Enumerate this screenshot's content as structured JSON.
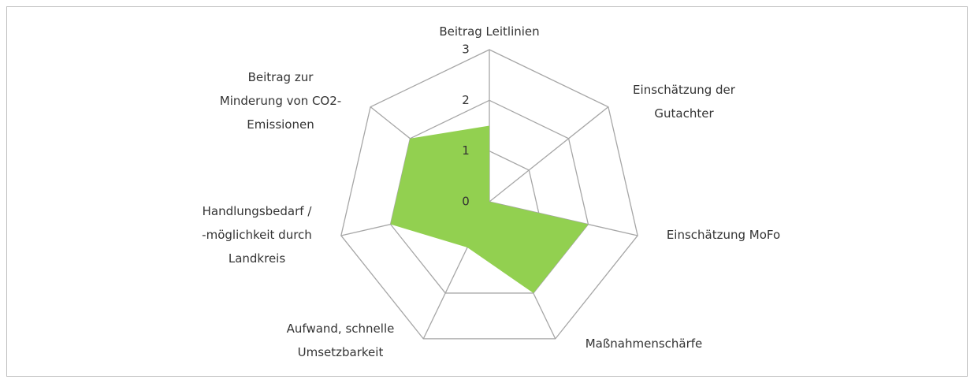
{
  "chart_data": {
    "type": "radar",
    "categories": [
      [
        "Beitrag Leitlinien"
      ],
      [
        "Einschätzung der",
        "Gutachter"
      ],
      [
        "Einschätzung MoFo"
      ],
      [
        "Maßnahmenschärfe"
      ],
      [
        "Aufwand, schnelle",
        "Umsetzbarkeit"
      ],
      [
        "Handlungsbedarf /",
        "-möglichkeit durch",
        "Landkreis"
      ],
      [
        "Beitrag zur",
        "Minderung von CO2-",
        "Emissionen"
      ]
    ],
    "values": [
      1.5,
      0,
      2,
      2,
      1,
      2,
      2
    ],
    "color": "#92d050",
    "rlim": [
      0,
      3
    ],
    "rticks": [
      0,
      1,
      2,
      3
    ],
    "grid": true
  }
}
